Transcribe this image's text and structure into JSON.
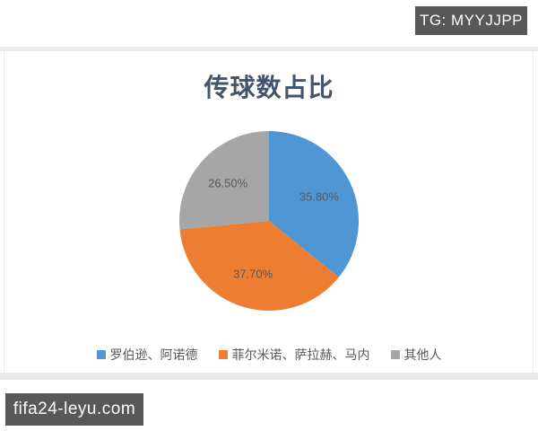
{
  "watermarks": {
    "tg_badge": "TG: MYYJJPP",
    "site_badge": "fifa24-leyu.com",
    "badge_bg": "#58585a",
    "badge_text_color": "#ffffff"
  },
  "chart_data": {
    "type": "pie",
    "title": "传球数占比",
    "categories": [
      "罗伯逊、阿诺德",
      "菲尔米诺、萨拉赫、马内",
      "其他人"
    ],
    "values": [
      35.8,
      37.7,
      26.5
    ],
    "labels": [
      "35.80%",
      "37.70%",
      "26.50%"
    ],
    "colors": [
      "#4f96d5",
      "#ed7d31",
      "#a6a6a6"
    ],
    "title_color": "#44546a",
    "label_color": "#595959",
    "legend_text_color": "#595959",
    "legend_position": "bottom",
    "start_angle": "top",
    "direction": "clockwise"
  }
}
